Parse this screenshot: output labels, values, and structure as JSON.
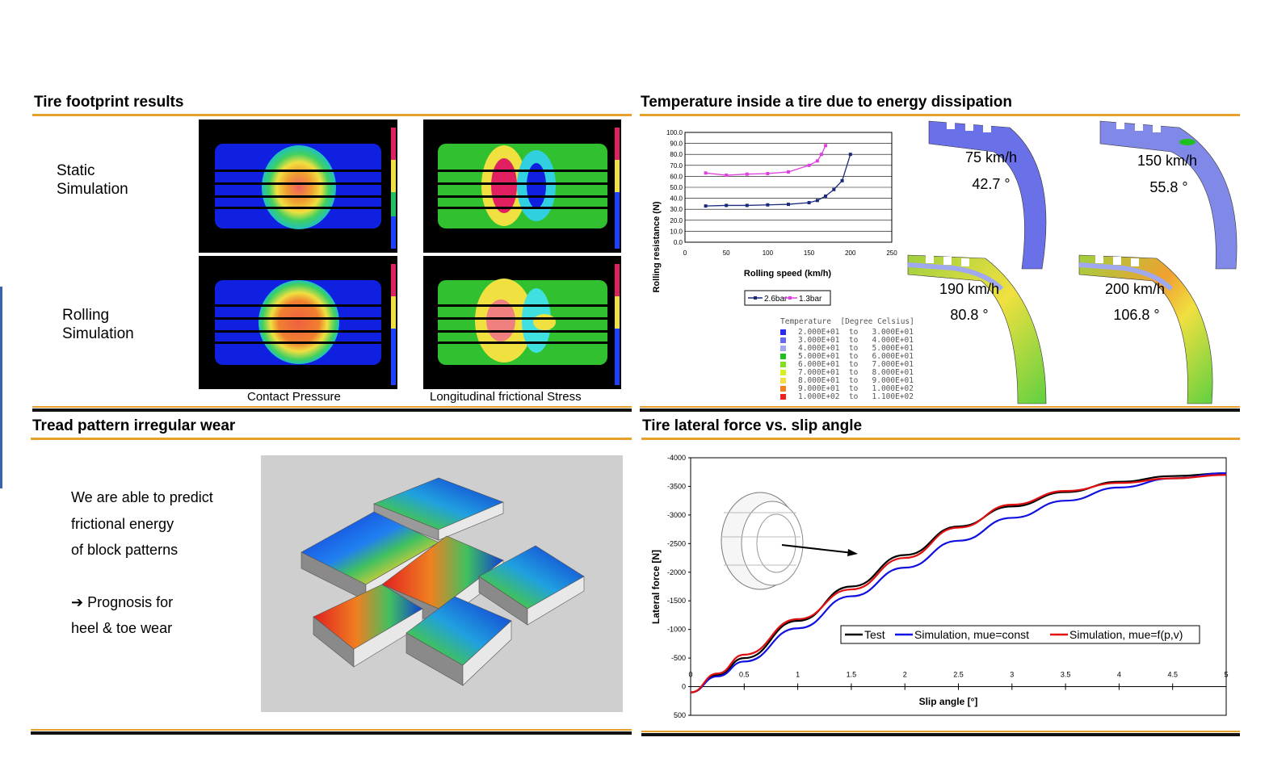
{
  "sections": {
    "footprint": {
      "title": "Tire footprint results",
      "row_labels": [
        [
          "Static",
          "Simulation"
        ],
        [
          "Rolling",
          "Simulation"
        ]
      ],
      "col_captions": [
        "Contact Pressure",
        "Longitudinal frictional Stress"
      ]
    },
    "temperature": {
      "title": "Temperature inside a tire due to energy dissipation",
      "tires": [
        {
          "speed": "75 km/h",
          "temp": "42.7 °"
        },
        {
          "speed": "150 km/h",
          "temp": "55.8 °"
        },
        {
          "speed": "190 km/h",
          "temp": "80.8 °"
        },
        {
          "speed": "200 km/h",
          "temp": "106.8 °"
        }
      ],
      "legend_title": "Temperature  [Degree Celsius]",
      "legend": [
        {
          "range": "2.000E+01  to   3.000E+01",
          "color": "#2a2af0"
        },
        {
          "range": "3.000E+01  to   4.000E+01",
          "color": "#6a6af0"
        },
        {
          "range": "4.000E+01  to   5.000E+01",
          "color": "#a0a8f0"
        },
        {
          "range": "5.000E+01  to   6.000E+01",
          "color": "#20c020"
        },
        {
          "range": "6.000E+01  to   7.000E+01",
          "color": "#80e020"
        },
        {
          "range": "7.000E+01  to   8.000E+01",
          "color": "#d8f020"
        },
        {
          "range": "8.000E+01  to   9.000E+01",
          "color": "#f0e040"
        },
        {
          "range": "9.000E+01  to   1.000E+02",
          "color": "#f08020"
        },
        {
          "range": "1.000E+02  to   1.100E+02",
          "color": "#f02020"
        }
      ]
    },
    "wear": {
      "title": "Tread pattern irregular wear",
      "lines": [
        "We are able to predict",
        "frictional energy",
        "of block patterns",
        "",
        "➔ Prognosis for",
        "heel & toe wear"
      ]
    },
    "lateral": {
      "title": "Tire lateral force vs. slip angle"
    }
  },
  "chart_data": [
    {
      "type": "line",
      "title": "",
      "xlabel": "Rolling speed (km/h)",
      "ylabel": "Rolling resistance (N)",
      "xlim": [
        0,
        250
      ],
      "ylim": [
        0,
        100
      ],
      "xticks": [
        "0",
        "50",
        "100",
        "150",
        "200",
        "250"
      ],
      "yticks": [
        "0.0",
        "10.0",
        "20.0",
        "30.0",
        "40.0",
        "50.0",
        "60.0",
        "70.0",
        "80.0",
        "90.0",
        "100.0"
      ],
      "series": [
        {
          "name": "2.6bar",
          "color": "#1a2a7a",
          "x": [
            25,
            50,
            75,
            100,
            125,
            150,
            160,
            170,
            180,
            190,
            200
          ],
          "y": [
            33,
            33.5,
            33.5,
            34,
            34.5,
            36,
            38,
            42,
            48,
            56,
            80
          ]
        },
        {
          "name": "1.3bar",
          "color": "#e040e0",
          "x": [
            25,
            50,
            75,
            100,
            125,
            150,
            160,
            165,
            170
          ],
          "y": [
            63,
            61,
            62,
            62.5,
            64,
            70,
            74,
            80,
            88
          ]
        }
      ]
    },
    {
      "type": "line",
      "title": "",
      "xlabel": "Slip angle [°]",
      "ylabel": "Lateral force [N]",
      "xlim": [
        0,
        5
      ],
      "ylim": [
        500,
        -4000
      ],
      "xticks": [
        "0",
        "0.5",
        "1",
        "1.5",
        "2",
        "2.5",
        "3",
        "3.5",
        "4",
        "4.5",
        "5"
      ],
      "yticks": [
        "-4000",
        "-3500",
        "-3000",
        "-2500",
        "-2000",
        "-1500",
        "-1000",
        "-500",
        "0",
        "500"
      ],
      "series": [
        {
          "name": "Test",
          "color": "#000000",
          "x": [
            0,
            0.25,
            0.5,
            1,
            1.5,
            2,
            2.5,
            3,
            3.5,
            4,
            4.5,
            5
          ],
          "y": [
            100,
            -200,
            -500,
            -1150,
            -1750,
            -2300,
            -2800,
            -3150,
            -3400,
            -3580,
            -3680,
            -3730
          ]
        },
        {
          "name": "Simulation, mue=const",
          "color": "#1010e0",
          "x": [
            0,
            0.25,
            0.5,
            1,
            1.5,
            2,
            2.5,
            3,
            3.5,
            4,
            4.5,
            5
          ],
          "y": [
            100,
            -180,
            -440,
            -1020,
            -1580,
            -2080,
            -2550,
            -2950,
            -3250,
            -3480,
            -3640,
            -3730
          ]
        },
        {
          "name": "Simulation, mue=f(p,v)",
          "color": "#e01010",
          "x": [
            0,
            0.25,
            0.5,
            1,
            1.5,
            2,
            2.5,
            3,
            3.5,
            4,
            4.5,
            5
          ],
          "y": [
            100,
            -230,
            -560,
            -1180,
            -1700,
            -2250,
            -2780,
            -3180,
            -3420,
            -3560,
            -3640,
            -3700
          ]
        }
      ]
    }
  ]
}
